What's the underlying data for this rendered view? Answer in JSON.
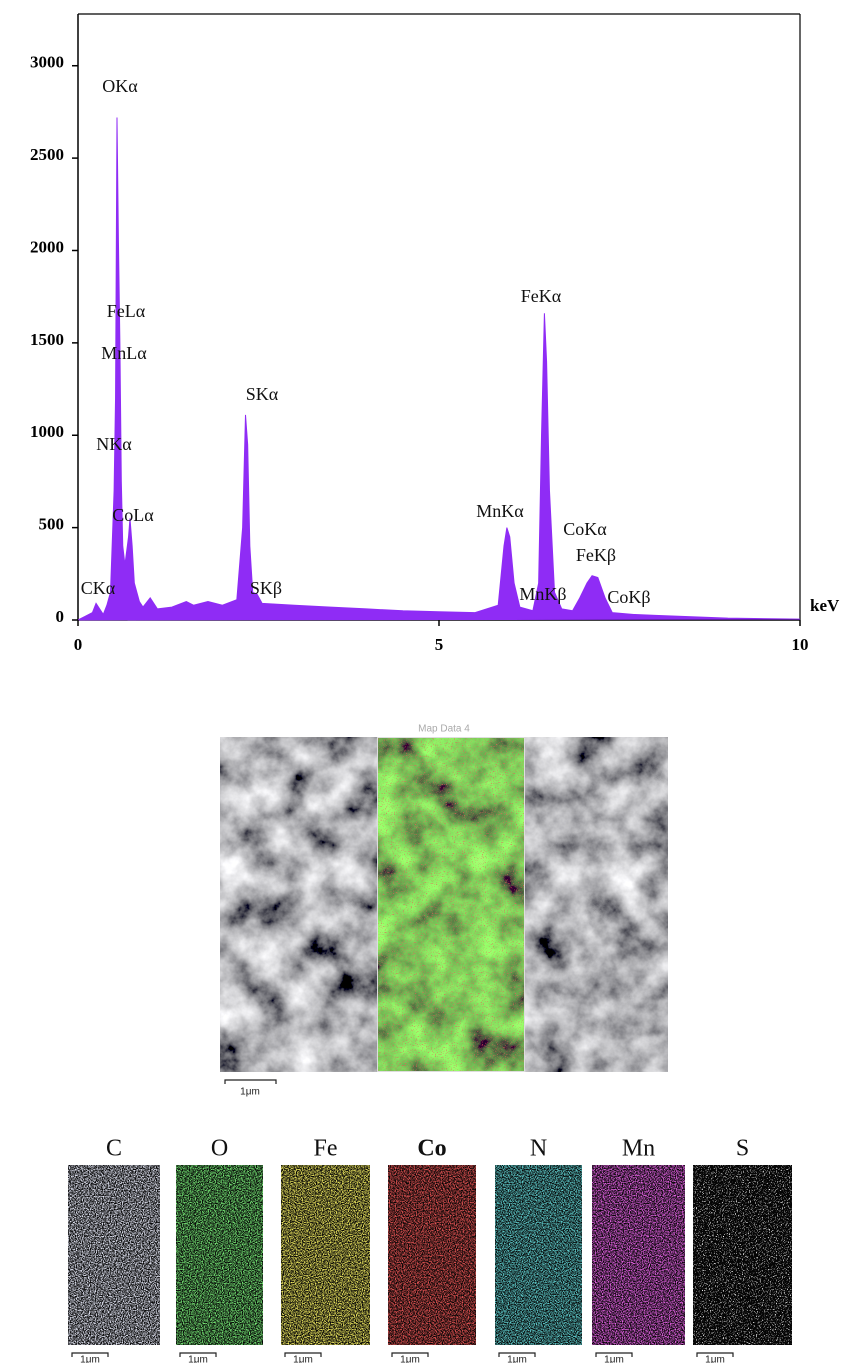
{
  "chart_data": {
    "type": "area",
    "xlabel": "keV",
    "x": [
      0,
      0.1,
      0.2,
      0.25,
      0.3,
      0.35,
      0.4,
      0.45,
      0.5,
      0.52,
      0.54,
      0.56,
      0.58,
      0.6,
      0.62,
      0.65,
      0.7,
      0.72,
      0.75,
      0.78,
      0.85,
      0.9,
      1.0,
      1.1,
      1.3,
      1.5,
      1.6,
      1.8,
      2.0,
      2.2,
      2.28,
      2.32,
      2.35,
      2.38,
      2.42,
      2.48,
      2.55,
      3.0,
      3.5,
      4.0,
      4.5,
      5.0,
      5.5,
      5.82,
      5.9,
      5.94,
      5.98,
      6.04,
      6.12,
      6.3,
      6.38,
      6.42,
      6.46,
      6.49,
      6.53,
      6.6,
      6.7,
      6.85,
      6.95,
      7.05,
      7.12,
      7.2,
      7.3,
      7.4,
      7.7,
      8.0,
      9.0,
      10.0
    ],
    "values": [
      0,
      20,
      40,
      90,
      60,
      30,
      80,
      150,
      700,
      1200,
      2720,
      2050,
      1500,
      750,
      400,
      300,
      450,
      550,
      400,
      200,
      100,
      70,
      120,
      60,
      70,
      100,
      80,
      100,
      80,
      110,
      500,
      1110,
      950,
      400,
      150,
      140,
      90,
      80,
      70,
      60,
      50,
      45,
      40,
      80,
      400,
      500,
      450,
      200,
      70,
      50,
      200,
      1000,
      1660,
      1400,
      700,
      150,
      60,
      50,
      120,
      200,
      240,
      230,
      120,
      40,
      30,
      25,
      10,
      5
    ],
    "color": "#8f2cf5",
    "xlim": [
      0,
      10
    ],
    "xticks": [
      0,
      5,
      10
    ],
    "ylim": [
      0,
      3280
    ],
    "yticks": [
      0,
      500,
      1000,
      1500,
      2000,
      2500,
      3000
    ],
    "grid": false,
    "annotations": [
      "OKα",
      "FeLα",
      "MnLα",
      "NKα",
      "CoLα",
      "CKα",
      "SKα",
      "SKβ",
      "FeKα",
      "MnKα",
      "MnKβ",
      "CoKα",
      "FeKβ",
      "CoKβ"
    ]
  },
  "maps": {
    "title": "Map Data 4",
    "scale_bar": "1μm",
    "elements": [
      "C",
      "O",
      "Fe",
      "Co",
      "N",
      "Mn",
      "S"
    ]
  }
}
